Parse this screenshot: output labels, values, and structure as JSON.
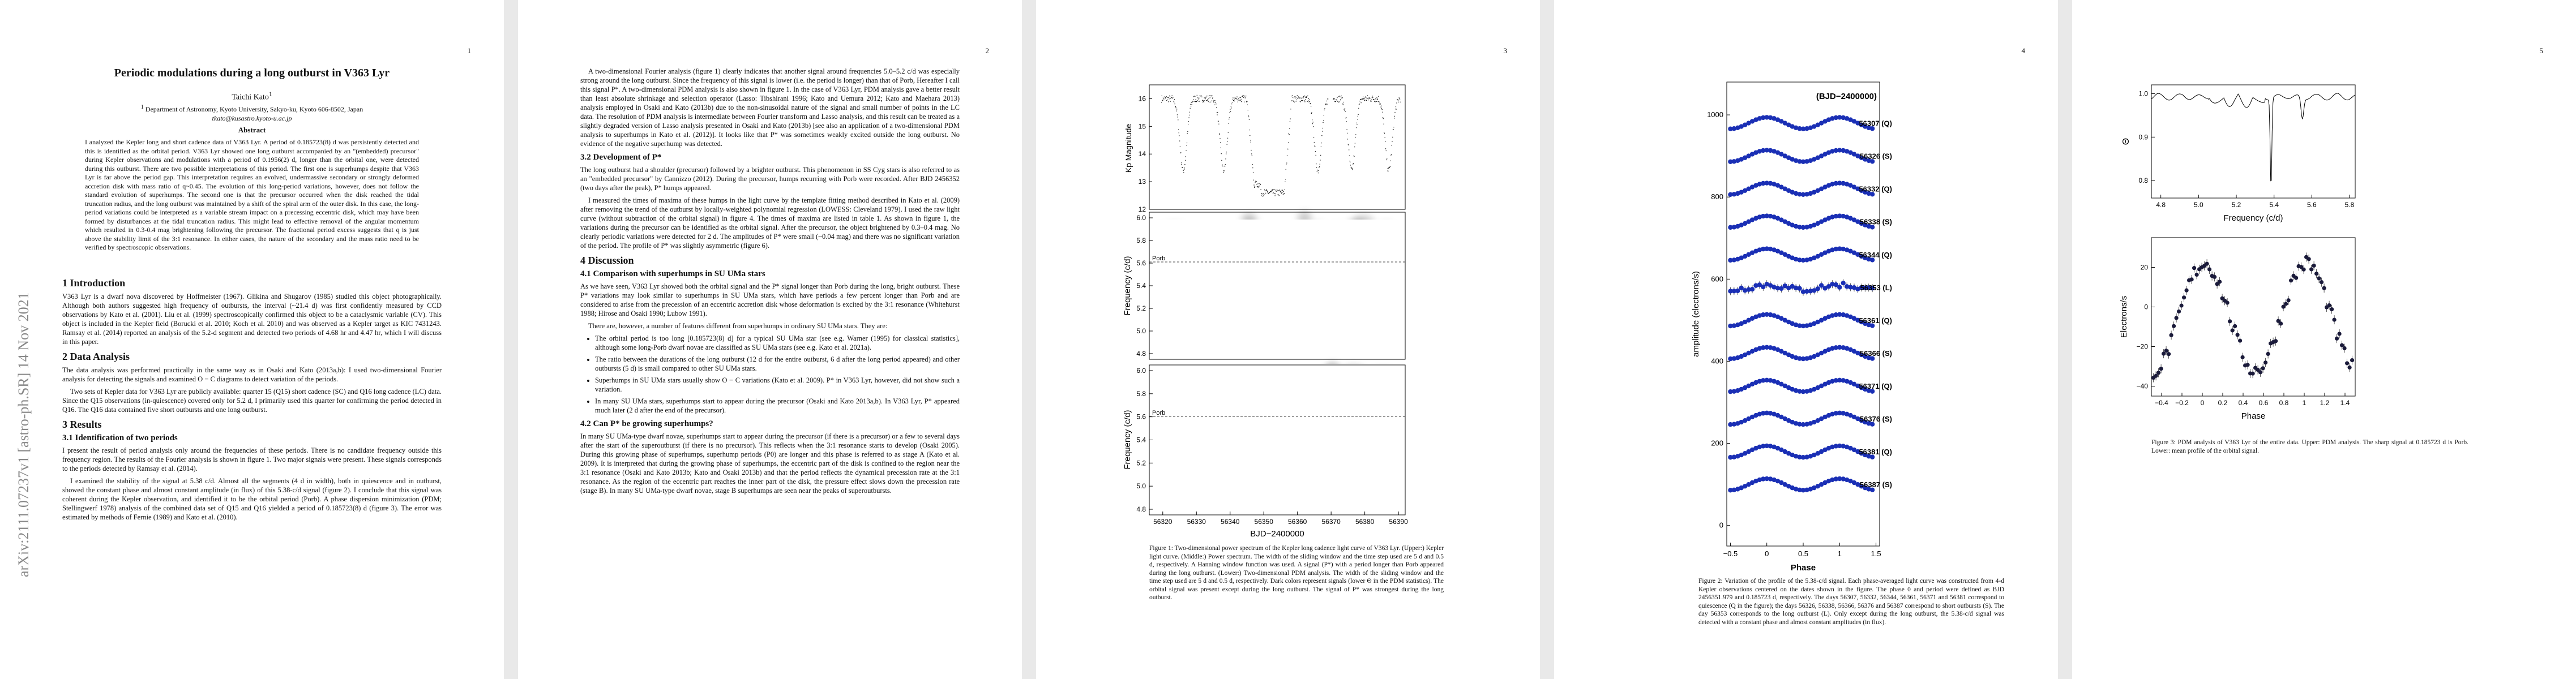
{
  "arxiv_stamp": "arXiv:2111.07237v1  [astro-ph.SR]  14 Nov 2021",
  "page_numbers": [
    "1",
    "2",
    "3",
    "4",
    "5"
  ],
  "p1": {
    "title": "Periodic modulations during a long outburst in V363 Lyr",
    "author": "Taichi Kato",
    "affiliation": "Department of Astronomy, Kyoto University, Sakyo-ku, Kyoto 606-8502, Japan",
    "email": "tkato@kusastro.kyoto-u.ac.jp",
    "abstract_heading": "Abstract",
    "abstract": "I analyzed the Kepler long and short cadence data of V363 Lyr. A period of 0.185723(8) d was persistently detected and this is identified as the orbital period. V363 Lyr showed one long outburst accompanied by an \"(embedded) precursor\" during Kepler observations and modulations with a period of 0.1956(2) d, longer than the orbital one, were detected during this outburst. There are two possible interpretations of this period. The first one is superhumps despite that V363 Lyr is far above the period gap. This interpretation requires an evolved, undermassive secondary or strongly deformed accretion disk with mass ratio of q~0.45. The evolution of this long-period variations, however, does not follow the standard evolution of superhumps. The second one is that the precursor occurred when the disk reached the tidal truncation radius, and the long outburst was maintained by a shift of the spiral arm of the outer disk. In this case, the long-period variations could be interpreted as a variable stream impact on a precessing eccentric disk, which may have been formed by disturbances at the tidal truncation radius. This might lead to effective removal of the angular momentum which resulted in 0.3-0.4 mag brightening following the precursor. The fractional period excess suggests that q is just above the stability limit of the 3:1 resonance. In either cases, the nature of the secondary and the mass ratio need to be verified by spectroscopic observations.",
    "s1_heading": "1   Introduction",
    "s1_text": "V363 Lyr is a dwarf nova discovered by Hoffmeister (1967). Glikina and Shugarov (1985) studied this object photographically. Although both authors suggested high frequency of outbursts, the interval (~21.4 d) was first confidently measured by CCD observations by Kato et al. (2001). Liu et al. (1999) spectroscopically confirmed this object to be a cataclysmic variable (CV). This object is included in the Kepler field (Borucki et al. 2010; Koch et al. 2010) and was observed as a Kepler target as KIC 7431243. Ramsay et al. (2014) reported an analysis of the 5.2-d segment and detected two periods of 4.68 hr and 4.47 hr, which I will discuss in this paper.",
    "s2_heading": "2   Data Analysis",
    "s2_text1": "The data analysis was performed practically in the same way as in Osaki and Kato (2013a,b): I used two-dimensional Fourier analysis for detecting the signals and examined O − C diagrams to detect variation of the periods.",
    "s2_text2": "Two sets of Kepler data for V363 Lyr are publicly available: quarter 15 (Q15) short cadence (SC) and Q16 long cadence (LC) data. Since the Q15 observations (in-quiescence) covered only for 5.2 d, I primarily used this quarter for confirming the period detected in Q16. The Q16 data contained five short outbursts and one long outburst.",
    "s3_heading": "3   Results",
    "s31_heading": "3.1   Identification of two periods",
    "s31_text1": "I present the result of period analysis only around the frequencies of these periods. There is no candidate frequency outside this frequency region. The results of the Fourier analysis is shown in figure 1. Two major signals were present. These signals corresponds to the periods detected by Ramsay et al. (2014).",
    "s31_text2": "I examined the stability of the signal at 5.38 c/d. Almost all the segments (4 d in width), both in quiescence and in outburst, showed the constant phase and almost constant amplitude (in flux) of this 5.38-c/d signal (figure 2). I conclude that this signal was coherent during the Kepler observation, and identified it to be the orbital period (Porb). A phase dispersion minimization (PDM; Stellingwerf 1978) analysis of the combined data set of Q15 and Q16 yielded a period of 0.185723(8) d (figure 3). The error was estimated by methods of Fernie (1989) and Kato et al. (2010)."
  },
  "p2": {
    "intro_text": "A two-dimensional Fourier analysis (figure 1) clearly indicates that another signal around frequencies 5.0–5.2 c/d was especially strong around the long outburst. Since the frequency of this signal is lower (i.e. the period is longer) than that of Porb, Hereafter I call this signal P*. A two-dimensional PDM analysis is also shown in figure 1. In the case of V363 Lyr, PDM analysis gave a better result than least absolute shrinkage and selection operator (Lasso: Tibshirani 1996; Kato and Uemura 2012; Kato and Maehara 2013) analysis employed in Osaki and Kato (2013b) due to the non-sinusoidal nature of the signal and small number of points in the LC data. The resolution of PDM analysis is intermediate between Fourier transform and Lasso analysis, and this result can be treated as a slightly degraded version of Lasso analysis presented in Osaki and Kato (2013b) [see also an application of a two-dimensional PDM analysis to superhumps in Kato et al. (2012)]. It looks like that P* was sometimes weakly excited outside the long outburst. No evidence of the negative superhump was detected.",
    "s32_heading": "3.2   Development of P*",
    "s32_text1": "The long outburst had a shoulder (precursor) followed by a brighter outburst. This phenomenon in SS Cyg stars is also referred to as an \"embedded precursor\" by Cannizzo (2012). During the precursor, humps recurring with Porb were recorded. After BJD 2456352 (two days after the peak), P* humps appeared.",
    "s32_text2": "I measured the times of maxima of these humps in the light curve by the template fitting method described in Kato et al. (2009) after removing the trend of the outburst by locally-weighted polynomial regression (LOWESS: Cleveland 1979). I used the raw light curve (without subtraction of the orbital signal) in figure 4. The times of maxima are listed in table 1. As shown in figure 1, the variations during the precursor can be identified as the orbital signal. After the precursor, the object brightened by 0.3–0.4 mag. No clearly periodic variations were detected for 2 d. The amplitudes of P* were small (~0.04 mag) and there was no significant variation of the period. The profile of P* was slightly asymmetric (figure 6).",
    "s4_heading": "4   Discussion",
    "s41_heading": "4.1   Comparison with superhumps in SU UMa stars",
    "s41_text1": "As we have seen, V363 Lyr showed both the orbital signal and the P* signal longer than Porb during the long, bright outburst. These P* variations may look similar to superhumps in SU UMa stars, which have periods a few percent longer than Porb and are considered to arise from the precession of an eccentric accretion disk whose deformation is excited by the 3:1 resonance (Whitehurst 1988; Hirose and Osaki 1990; Lubow 1991).",
    "s41_text2": "There are, however, a number of features different from superhumps in ordinary SU UMa stars. They are:",
    "bullets": [
      "The orbital period is too long [0.185723(8) d] for a typical SU UMa star (see e.g. Warner (1995) for classical statistics], although some long-Porb dwarf novae are classified as SU UMa stars (see e.g. Kato et al. 2021a).",
      "The ratio between the durations of the long outburst (12 d for the entire outburst, 6 d after the long period appeared) and other outbursts (5 d) is small compared to other SU UMa stars.",
      "Superhumps in SU UMa stars usually show O − C variations (Kato et al. 2009). P* in V363 Lyr, however, did not show such a variation.",
      "In many SU UMa stars, superhumps start to appear during the precursor (Osaki and Kato 2013a,b). In V363 Lyr, P* appeared much later (2 d after the end of the precursor)."
    ],
    "s42_heading": "4.2   Can P* be growing superhumps?",
    "s42_text": "In many SU UMa-type dwarf novae, superhumps start to appear during the precursor (if there is a precursor) or a few to several days after the start of the superoutburst (if there is no precursor). This reflects when the 3:1 resonance starts to develop (Osaki 2005). During this growing phase of superhumps, superhump periods (P0) are longer and this phase is referred to as stage A (Kato et al. 2009). It is interpreted that during the growing phase of superhumps, the eccentric part of the disk is confined to the region near the 3:1 resonance (Osaki and Kato 2013b; Kato and Osaki 2013b) and that the period reflects the dynamical precession rate at the 3:1 resonance. As the region of the eccentric part reaches the inner part of the disk, the pressure effect slows down the precession rate (stage B). In many SU UMa-type dwarf novae, stage B superhumps are seen near the peaks of superoutbursts."
  },
  "p3": {
    "panel1_ylabel": "Kp Magnitude",
    "panel1_yticks": [
      "16",
      "15",
      "14",
      "13",
      "12"
    ],
    "panel2_ylabel": "Frequency (c/d)",
    "panel3_ylabel": "Frequency (c/d)",
    "freq_ticks": [
      "6.0",
      "5.8",
      "5.6",
      "5.4",
      "5.2",
      "5.0",
      "4.8"
    ],
    "porb_label": "Porb",
    "xlabel": "BJD−2400000",
    "xticks": [
      "56320",
      "56330",
      "56340",
      "56350",
      "56360",
      "56370",
      "56380",
      "56390"
    ],
    "caption": "Figure 1: Two-dimensional power spectrum of the Kepler long cadence light curve of V363 Lyr. (Upper:) Kepler light curve. (Middle:) Power spectrum. The width of the sliding window and the time step used are 5 d and 0.5 d, respectively. A Hanning window function was used. A signal (P*) with a period longer than Porb appeared during the long outburst. (Lower:) Two-dimensional PDM analysis. The width of the sliding window and the time step used are 5 d and 0.5 d, respectively. Dark colors represent signals (lower Θ in the PDM statistics). The orbital signal was present except during the long outburst. The signal of P* was strongest during the long outburst."
  },
  "p4": {
    "header_label": "(BJD−2400000)",
    "ylabel": "amplitude (electrons/s)",
    "xlabel": "Phase",
    "yticks": [
      "0",
      "200",
      "400",
      "600",
      "800",
      "1000"
    ],
    "xticks": [
      "−0.5",
      "0",
      "0.5",
      "1",
      "1.5"
    ],
    "segments": [
      "56307 (Q)",
      "56326 (S)",
      "56332 (Q)",
      "56338 (S)",
      "56344 (Q)",
      "56353 (L)",
      "56361 (Q)",
      "56366 (S)",
      "56371 (Q)",
      "56376 (S)",
      "56381 (Q)",
      "56387 (S)"
    ],
    "caption": "Figure 2: Variation of the profile of the 5.38-c/d signal. Each phase-averaged light curve was constructed from 4-d Kepler observations centered on the dates shown in the figure. The phase 0 and period were defined as BJD 2456351.979 and 0.185723 d, respectively. The days 56307, 56332, 56344, 56361, 56371 and 56381 correspond to quiescence (Q in the figure); the days 56326, 56338, 56366, 56376 and 56387 correspond to short outbursts (S). The day 56353 corresponds to the long outburst (L). Only except during the long outburst, the 5.38-c/d signal was detected with a constant phase and almost constant amplitudes (in flux)."
  },
  "p5": {
    "top_ylabel": "Θ",
    "top_yticks": [
      "1.0",
      "0.9",
      "0.8"
    ],
    "top_xticks": [
      "4.8",
      "5.0",
      "5.2",
      "5.4",
      "5.6",
      "5.8"
    ],
    "top_xlabel": "Frequency (c/d)",
    "bottom_ylabel": "Electrons/s",
    "bottom_yticks": [
      "20",
      "0",
      "−20",
      "−40"
    ],
    "bottom_xticks": [
      "−0.4",
      "−0.2",
      "0",
      "0.2",
      "0.4",
      "0.6",
      "0.8",
      "1",
      "1.2",
      "1.4"
    ],
    "bottom_xlabel": "Phase",
    "caption": "Figure 3: PDM analysis of V363 Lyr of the entire data. Upper: PDM analysis. The sharp signal at 0.185723 d is Porb. Lower: mean profile of the orbital signal."
  }
}
